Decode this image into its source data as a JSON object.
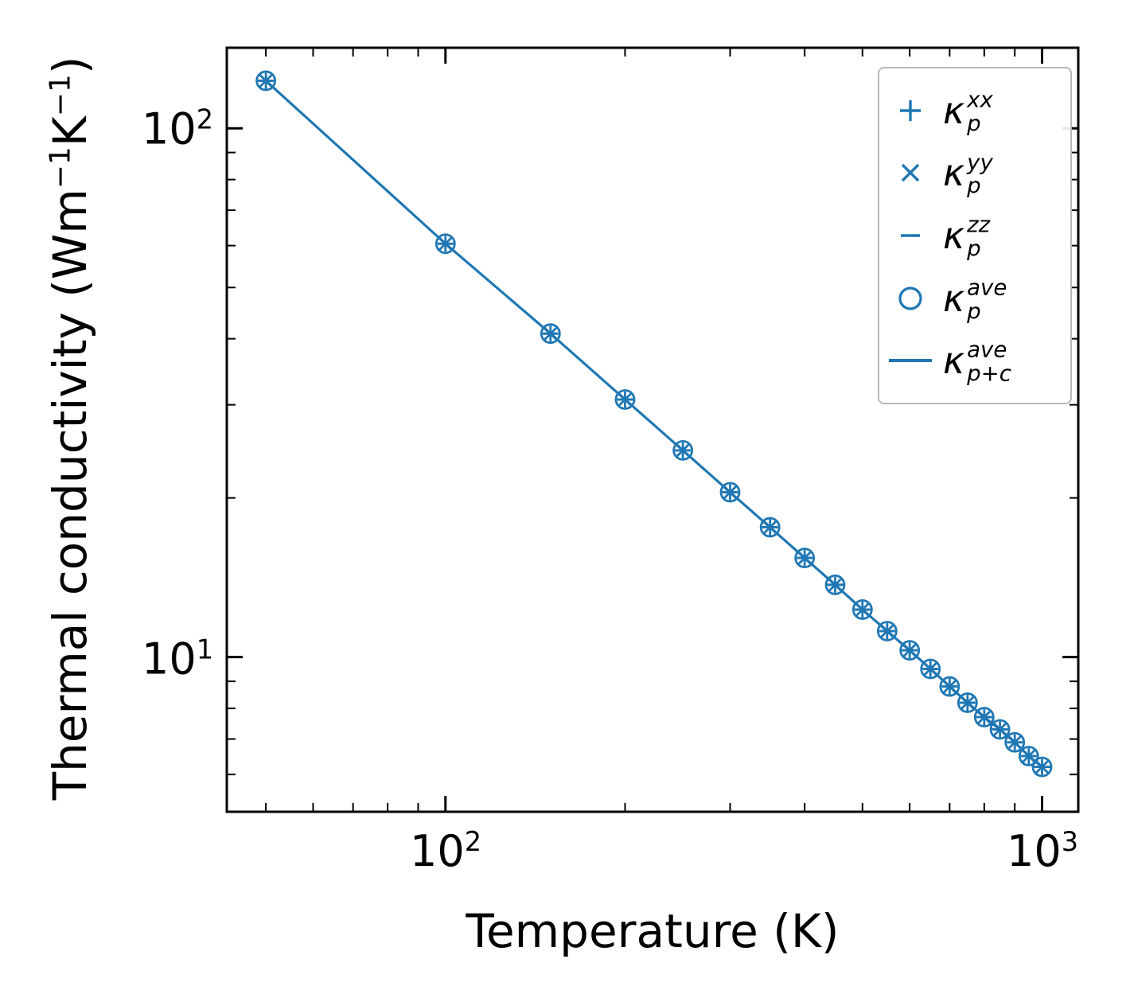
{
  "figure": {
    "accent_color": "#1f77b4",
    "background_color": "#ffffff",
    "frame_color": "#000000"
  },
  "labels": {
    "x": "Temperature (K)",
    "y_part1": "Thermal conductivity (Wm",
    "y_sup1": "−1",
    "y_part2": "K",
    "y_sup2": "−1",
    "y_part3": ")"
  },
  "ticks": {
    "x": [
      {
        "base": "10",
        "exp": "2",
        "value": 100
      },
      {
        "base": "10",
        "exp": "3",
        "value": 1000
      }
    ],
    "y": [
      {
        "base": "10",
        "exp": "2",
        "value": 100
      },
      {
        "base": "10",
        "exp": "1",
        "value": 10
      }
    ]
  },
  "legend": {
    "entries": [
      {
        "base": "κ",
        "sup": "xx",
        "sub": "p",
        "marker": "plus"
      },
      {
        "base": "κ",
        "sup": "yy",
        "sub": "p",
        "marker": "x"
      },
      {
        "base": "κ",
        "sup": "zz",
        "sub": "p",
        "marker": "dash"
      },
      {
        "base": "κ",
        "sup": "ave",
        "sub": "p",
        "marker": "circle"
      },
      {
        "base": "κ",
        "sup": "ave",
        "sub": "p+c",
        "marker": "line"
      }
    ]
  },
  "chart_data": {
    "type": "line",
    "title": "",
    "xlabel": "Temperature (K)",
    "ylabel": "Thermal conductivity (Wm⁻¹K⁻¹)",
    "xscale": "log",
    "yscale": "log",
    "xlim": [
      43,
      1150
    ],
    "ylim": [
      5.1,
      142
    ],
    "grid": false,
    "legend_position": "upper right",
    "x": [
      50,
      100,
      150,
      200,
      250,
      300,
      350,
      400,
      450,
      500,
      550,
      600,
      650,
      700,
      750,
      800,
      850,
      900,
      950,
      1000
    ],
    "series": [
      {
        "name": "κ_p^xx",
        "marker": "plus",
        "values": [
          123,
          60.5,
          40.9,
          30.7,
          24.6,
          20.5,
          17.6,
          15.4,
          13.7,
          12.3,
          11.2,
          10.3,
          9.5,
          8.8,
          8.2,
          7.7,
          7.3,
          6.9,
          6.5,
          6.2
        ]
      },
      {
        "name": "κ_p^yy",
        "marker": "x",
        "values": [
          123,
          60.5,
          40.9,
          30.7,
          24.6,
          20.5,
          17.6,
          15.4,
          13.7,
          12.3,
          11.2,
          10.3,
          9.5,
          8.8,
          8.2,
          7.7,
          7.3,
          6.9,
          6.5,
          6.2
        ]
      },
      {
        "name": "κ_p^zz",
        "marker": "dash",
        "values": [
          123,
          60.5,
          40.9,
          30.7,
          24.6,
          20.5,
          17.6,
          15.4,
          13.7,
          12.3,
          11.2,
          10.3,
          9.5,
          8.8,
          8.2,
          7.7,
          7.3,
          6.9,
          6.5,
          6.2
        ]
      },
      {
        "name": "κ_p^ave",
        "marker": "circle",
        "values": [
          123,
          60.5,
          40.9,
          30.7,
          24.6,
          20.5,
          17.6,
          15.4,
          13.7,
          12.3,
          11.2,
          10.3,
          9.5,
          8.8,
          8.2,
          7.7,
          7.3,
          6.9,
          6.5,
          6.2
        ]
      },
      {
        "name": "κ_p+c^ave",
        "marker": "line",
        "values": [
          123,
          60.5,
          40.9,
          30.7,
          24.6,
          20.5,
          17.6,
          15.4,
          13.7,
          12.3,
          11.2,
          10.3,
          9.5,
          8.8,
          8.2,
          7.7,
          7.3,
          6.9,
          6.5,
          6.2
        ]
      }
    ]
  }
}
